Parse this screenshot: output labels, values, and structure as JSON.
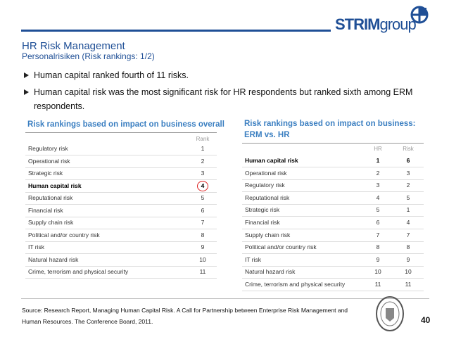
{
  "header": {
    "title": "HR Risk Management",
    "subtitle": "Personalrisiken (Risk rankings: 1/2)",
    "logo": {
      "strim": "STRIM",
      "group": "group"
    }
  },
  "bullets": [
    "Human capital ranked fourth of 11 risks.",
    "Human capital risk was the most significant risk for HR respondents but ranked sixth among ERM respondents."
  ],
  "table1": {
    "title": "Risk rankings based on impact on business overall",
    "columns": [
      "Rank"
    ],
    "highlight": 3,
    "rows": [
      [
        "Regulatory risk",
        1
      ],
      [
        "Operational risk",
        2
      ],
      [
        "Strategic risk",
        3
      ],
      [
        "Human capital risk",
        4
      ],
      [
        "Reputational risk",
        5
      ],
      [
        "Financial risk",
        6
      ],
      [
        "Supply chain risk",
        7
      ],
      [
        "Political and/or country risk",
        8
      ],
      [
        "IT risk",
        9
      ],
      [
        "Natural hazard risk",
        10
      ],
      [
        "Crime, terrorism and physical security",
        11
      ]
    ]
  },
  "table2": {
    "title": [
      "Risk rankings based on impact on business:",
      "ERM vs. HR"
    ],
    "columns": [
      "HR",
      "Risk"
    ],
    "highlight": 0,
    "rows": [
      [
        "Human capital risk",
        1,
        6
      ],
      [
        "Operational risk",
        2,
        3
      ],
      [
        "Regulatory risk",
        3,
        2
      ],
      [
        "Reputational risk",
        4,
        5
      ],
      [
        "Strategic risk",
        5,
        1
      ],
      [
        "Financial risk",
        6,
        4
      ],
      [
        "Supply chain risk",
        7,
        7
      ],
      [
        "Political and/or country risk",
        8,
        8
      ],
      [
        "IT risk",
        9,
        9
      ],
      [
        "Natural hazard risk",
        10,
        10
      ],
      [
        "Crime, terrorism and physical security",
        11,
        11
      ]
    ]
  },
  "footer": {
    "source": [
      "Source: Research Report, Managing Human Capital Risk. A Call for Partnership between Enterprise Risk Management and",
      "Human Resources. The Conference Board, 2011."
    ],
    "page": 40
  }
}
